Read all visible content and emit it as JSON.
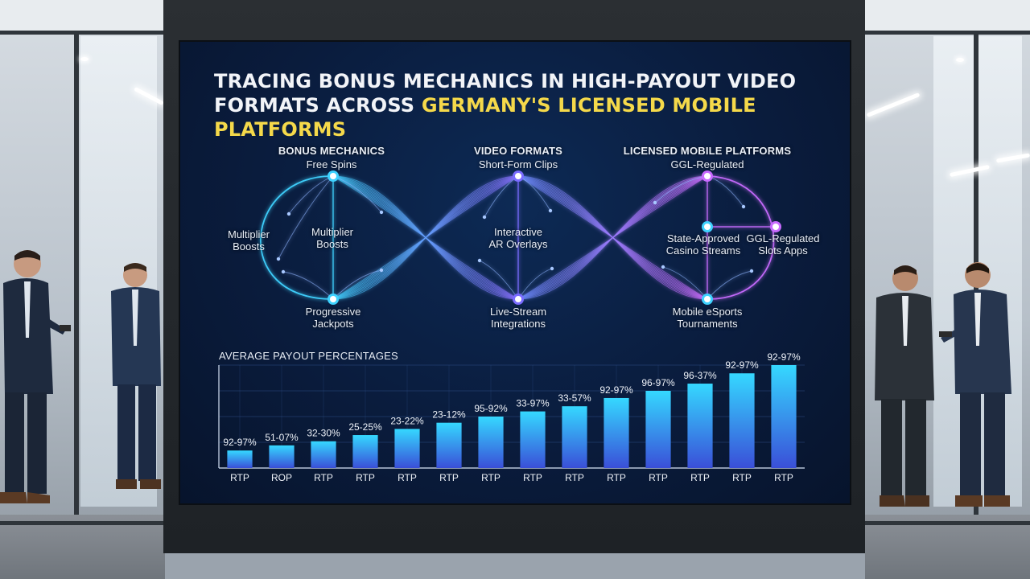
{
  "title": {
    "line1": "TRACING BONUS MECHANICS IN HIGH-PAYOUT VIDEO",
    "line2_start": "FORMATS ACROSS ",
    "line2_highlight": "GERMANY'S LICENSED MOBILE PLATFORMS"
  },
  "columns": [
    {
      "header": "BONUS MECHANICS",
      "top": "Free Spins",
      "left": "Multiplier\nBoosts",
      "center": "Multiplier\nBoosts",
      "bottom": "Progressive\nJackpots"
    },
    {
      "header": "VIDEO FORMATS",
      "top": "Short-Form Clips",
      "center": "Interactive\nAR Overlays",
      "bottom": "Live-Stream\nIntegrations"
    },
    {
      "header": "LICENSED MOBILE PLATFORMS",
      "top": "GGL-Regulated",
      "center": "State-Approved\nCasino Streams",
      "right": "GGL-Regulated\nSlots Apps",
      "bottom": "Mobile eSports\nTournaments"
    }
  ],
  "colors": {
    "bonus": "#3fd2ff",
    "video": "#7a6cff",
    "platform": "#c86bff",
    "bar_top": "#35d8ff",
    "bar_bottom": "#3a4fd8",
    "title_highlight": "#f5d94a"
  },
  "chart_data": {
    "type": "bar",
    "title": "AVERAGE PAYOUT PERCENTAGES",
    "categories": [
      "RTP",
      "ROP",
      "RTP",
      "RTP",
      "RTP",
      "RTP",
      "RTP",
      "RTP",
      "RTP",
      "RTP",
      "RTP",
      "RTP",
      "RTP",
      "RTP"
    ],
    "data_labels": [
      "92-97%",
      "51-07%",
      "32-30%",
      "25-25%",
      "23-22%",
      "23-12%",
      "95-92%",
      "33-97%",
      "33-57%",
      "92-97%",
      "96-97%",
      "96-37%",
      "92-97%",
      "92-97%"
    ],
    "values": [
      17,
      22,
      26,
      32,
      38,
      44,
      50,
      55,
      60,
      68,
      75,
      82,
      92,
      100
    ],
    "grid": true
  }
}
